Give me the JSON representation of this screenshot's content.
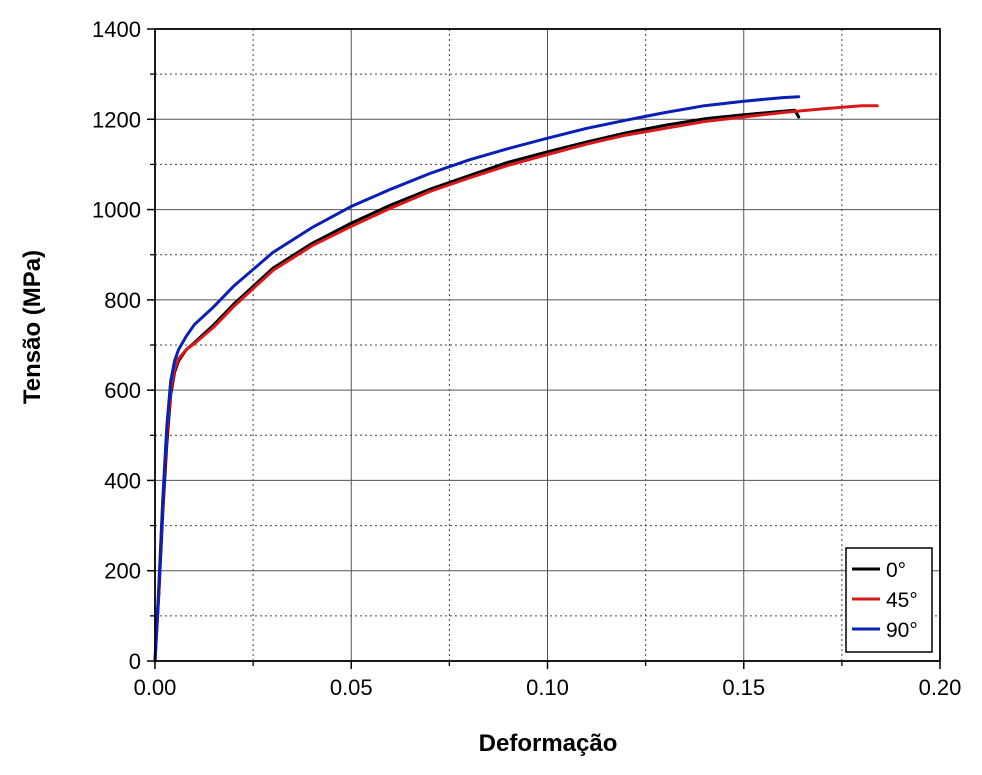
{
  "chart_data": {
    "type": "line",
    "xlabel": "Deformação",
    "ylabel": "Tensão (MPa)",
    "xlim": [
      0,
      0.2
    ],
    "ylim": [
      0,
      1400
    ],
    "x_ticks": [
      "0.00",
      "0.05",
      "0.10",
      "0.15",
      "0.20"
    ],
    "y_ticks": [
      "0",
      "200",
      "400",
      "600",
      "800",
      "1000",
      "1200",
      "1400"
    ],
    "grid": true,
    "grid_style": "major solid, minor dotted",
    "legend_position": "bottom-right",
    "series": [
      {
        "name": "0°",
        "color": "#000000",
        "points": [
          [
            0,
            0
          ],
          [
            0.001,
            150
          ],
          [
            0.002,
            330
          ],
          [
            0.003,
            480
          ],
          [
            0.004,
            590
          ],
          [
            0.005,
            640
          ],
          [
            0.006,
            665
          ],
          [
            0.008,
            690
          ],
          [
            0.01,
            705
          ],
          [
            0.015,
            745
          ],
          [
            0.02,
            790
          ],
          [
            0.03,
            870
          ],
          [
            0.04,
            925
          ],
          [
            0.05,
            970
          ],
          [
            0.06,
            1010
          ],
          [
            0.07,
            1045
          ],
          [
            0.08,
            1075
          ],
          [
            0.09,
            1105
          ],
          [
            0.1,
            1128
          ],
          [
            0.11,
            1150
          ],
          [
            0.12,
            1170
          ],
          [
            0.13,
            1187
          ],
          [
            0.14,
            1201
          ],
          [
            0.15,
            1210
          ],
          [
            0.16,
            1218
          ],
          [
            0.163,
            1220
          ],
          [
            0.164,
            1205
          ]
        ]
      },
      {
        "name": "45°",
        "color": "#d7191c",
        "points": [
          [
            0,
            0
          ],
          [
            0.001,
            160
          ],
          [
            0.002,
            350
          ],
          [
            0.003,
            500
          ],
          [
            0.004,
            600
          ],
          [
            0.005,
            645
          ],
          [
            0.006,
            670
          ],
          [
            0.008,
            690
          ],
          [
            0.01,
            703
          ],
          [
            0.015,
            740
          ],
          [
            0.02,
            785
          ],
          [
            0.03,
            865
          ],
          [
            0.04,
            920
          ],
          [
            0.05,
            963
          ],
          [
            0.06,
            1003
          ],
          [
            0.07,
            1040
          ],
          [
            0.08,
            1070
          ],
          [
            0.09,
            1098
          ],
          [
            0.1,
            1122
          ],
          [
            0.11,
            1145
          ],
          [
            0.12,
            1165
          ],
          [
            0.13,
            1180
          ],
          [
            0.14,
            1195
          ],
          [
            0.15,
            1205
          ],
          [
            0.16,
            1215
          ],
          [
            0.17,
            1223
          ],
          [
            0.18,
            1230
          ],
          [
            0.184,
            1230
          ]
        ]
      },
      {
        "name": "90°",
        "color": "#0a1fb4",
        "points": [
          [
            0,
            0
          ],
          [
            0.001,
            170
          ],
          [
            0.002,
            360
          ],
          [
            0.003,
            520
          ],
          [
            0.004,
            620
          ],
          [
            0.005,
            665
          ],
          [
            0.006,
            690
          ],
          [
            0.008,
            720
          ],
          [
            0.01,
            745
          ],
          [
            0.015,
            785
          ],
          [
            0.02,
            830
          ],
          [
            0.03,
            905
          ],
          [
            0.04,
            960
          ],
          [
            0.05,
            1007
          ],
          [
            0.06,
            1045
          ],
          [
            0.07,
            1080
          ],
          [
            0.08,
            1110
          ],
          [
            0.09,
            1135
          ],
          [
            0.1,
            1158
          ],
          [
            0.11,
            1180
          ],
          [
            0.12,
            1198
          ],
          [
            0.13,
            1215
          ],
          [
            0.14,
            1230
          ],
          [
            0.15,
            1240
          ],
          [
            0.16,
            1248
          ],
          [
            0.164,
            1250
          ]
        ]
      }
    ]
  }
}
